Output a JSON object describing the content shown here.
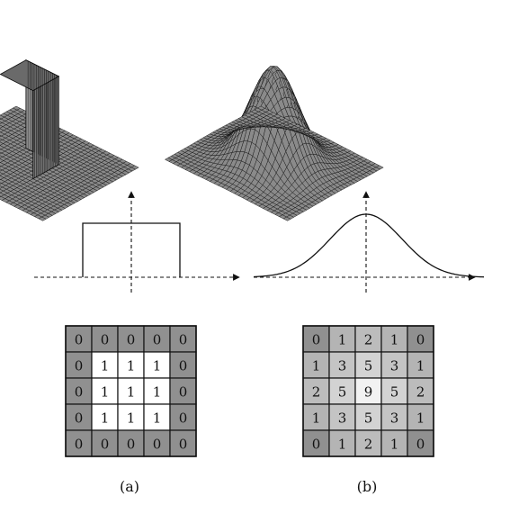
{
  "panels": [
    {
      "caption": "(a)",
      "surface": "box",
      "profile": "rect",
      "kernel": [
        [
          0,
          0,
          0,
          0,
          0
        ],
        [
          0,
          1,
          1,
          1,
          0
        ],
        [
          0,
          1,
          1,
          1,
          0
        ],
        [
          0,
          1,
          1,
          1,
          0
        ],
        [
          0,
          0,
          0,
          0,
          0
        ]
      ]
    },
    {
      "caption": "(b)",
      "surface": "gaussian",
      "profile": "gaussian",
      "kernel": [
        [
          0,
          1,
          2,
          1,
          0
        ],
        [
          1,
          3,
          5,
          3,
          1
        ],
        [
          2,
          5,
          9,
          5,
          2
        ],
        [
          1,
          3,
          5,
          3,
          1
        ],
        [
          0,
          1,
          2,
          1,
          0
        ]
      ]
    }
  ],
  "colors": {
    "ink": "#111111",
    "zero_cell": "#909090",
    "box_one_cell": "#ffffff",
    "gauss_low": "#b4b4b4",
    "gauss_high": "#f2f2f2",
    "surface_face": "#8a8a8a"
  }
}
